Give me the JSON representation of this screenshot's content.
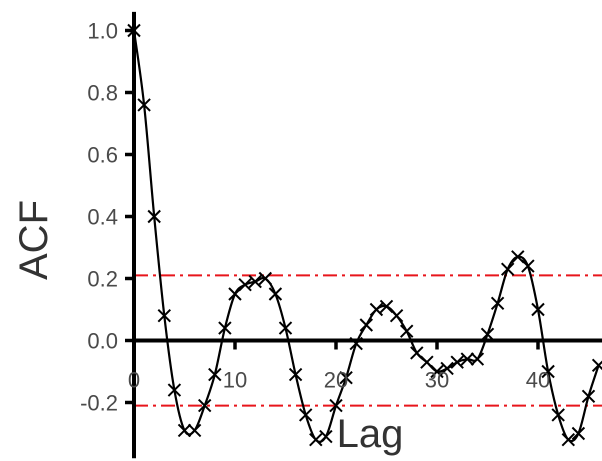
{
  "chart_data": {
    "type": "line",
    "xlabel": "Lag",
    "ylabel": "ACF",
    "xlim": [
      0,
      46.5
    ],
    "ylim": [
      -0.38,
      1.06
    ],
    "x_ticks": [
      0,
      10,
      20,
      30,
      40
    ],
    "y_ticks": [
      -0.2,
      0.0,
      0.2,
      0.4,
      0.6,
      0.8,
      1.0
    ],
    "x_tick_labels": [
      "0",
      "10",
      "20",
      "30",
      "40"
    ],
    "y_tick_labels": [
      "-0.2",
      "0.0",
      "0.2",
      "0.4",
      "0.6",
      "0.8",
      "1.0"
    ],
    "grid": false,
    "legend": "none",
    "marker": "x",
    "line_color": "#000000",
    "confidence_band": {
      "upper": 0.21,
      "lower": -0.21,
      "color": "#e8151b",
      "style": "dash-dot"
    },
    "x": [
      0,
      1,
      2,
      3,
      4,
      5,
      6,
      7,
      8,
      9,
      10,
      11,
      12,
      13,
      14,
      15,
      16,
      17,
      18,
      19,
      20,
      21,
      22,
      23,
      24,
      25,
      26,
      27,
      28,
      29,
      30,
      31,
      32,
      33,
      34,
      35,
      36,
      37,
      38,
      39,
      40,
      41,
      42,
      43,
      44,
      45,
      46
    ],
    "y": [
      1.0,
      0.76,
      0.4,
      0.08,
      -0.16,
      -0.29,
      -0.29,
      -0.21,
      -0.11,
      0.04,
      0.15,
      0.18,
      0.19,
      0.2,
      0.15,
      0.04,
      -0.11,
      -0.24,
      -0.32,
      -0.31,
      -0.21,
      -0.12,
      -0.01,
      0.05,
      0.1,
      0.11,
      0.08,
      0.03,
      -0.04,
      -0.07,
      -0.1,
      -0.09,
      -0.07,
      -0.06,
      -0.06,
      0.02,
      0.12,
      0.23,
      0.27,
      0.24,
      0.1,
      -0.1,
      -0.24,
      -0.32,
      -0.3,
      -0.18,
      -0.08
    ]
  }
}
